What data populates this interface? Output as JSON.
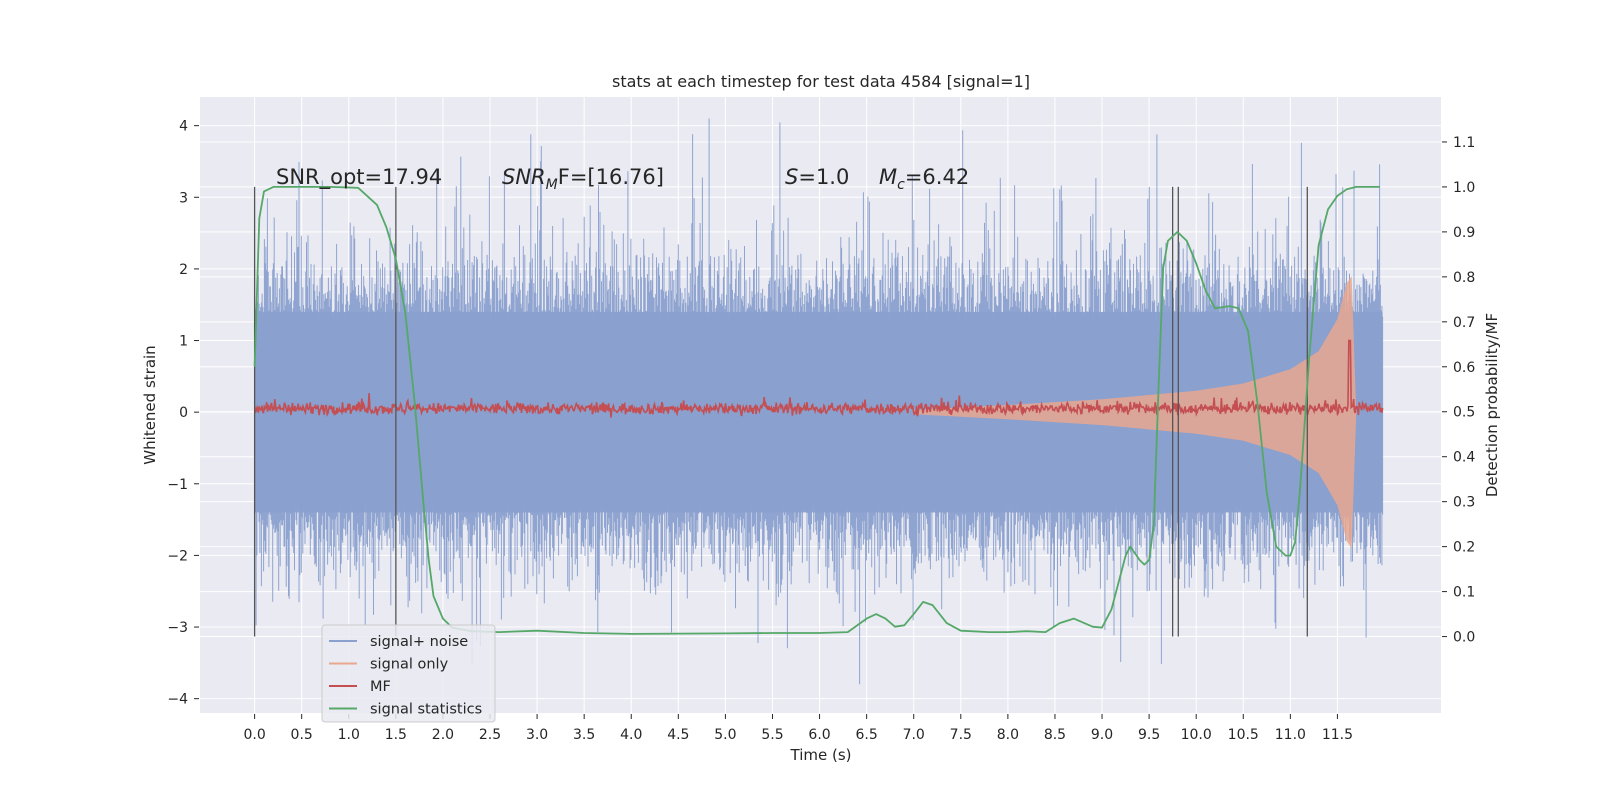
{
  "chart_data": {
    "type": "line",
    "title": "stats at each timestep for test data 4584 [signal=1]",
    "xlabel": "Time (s)",
    "ylabel": "Whitened strain",
    "y2label": "Detection probability/MF",
    "xlim": [
      -0.58,
      12.6
    ],
    "ylim": [
      -4.2,
      4.4
    ],
    "y2lim": [
      -0.17,
      1.2
    ],
    "x_ticks": [
      "0.0",
      "0.5",
      "1.0",
      "1.5",
      "2.0",
      "2.5",
      "3.0",
      "3.5",
      "4.0",
      "4.5",
      "5.0",
      "5.5",
      "6.0",
      "6.5",
      "7.0",
      "7.5",
      "8.0",
      "8.5",
      "9.0",
      "9.5",
      "10.0",
      "10.5",
      "11.0",
      "11.5"
    ],
    "y_ticks": [
      "4",
      "3",
      "2",
      "1",
      "0",
      "−1",
      "−2",
      "−3",
      "−4"
    ],
    "y2_ticks": [
      "1.1",
      "1.0",
      "0.9",
      "0.8",
      "0.7",
      "0.6",
      "0.5",
      "0.4",
      "0.3",
      "0.2",
      "0.1",
      "0.0"
    ],
    "grid": true,
    "legend_position": "lower-left",
    "annotations": {
      "snr_opt": "SNR_opt=17.94",
      "snr_mf_main": "SNR",
      "snr_mf_sub": "M",
      "snr_mf_tail": "F=[16.76]",
      "s_main": "S",
      "s_tail": "=1.0",
      "mc_main": "M",
      "mc_sub": "c",
      "mc_tail": "=6.42"
    },
    "vertical_markers": [
      0.0,
      1.5,
      9.75,
      9.81,
      11.18
    ],
    "series": [
      {
        "name": "signal+ noise",
        "color": "#8aa0ce",
        "axis": "left",
        "kind": "noise-band",
        "x_range": [
          0.0,
          11.98
        ],
        "core_amplitude": 1.4,
        "peak_range": [
          -3.8,
          4.1
        ]
      },
      {
        "name": "signal only",
        "color": "#e8a78f",
        "axis": "left",
        "kind": "chirp-envelope",
        "x": [
          7.0,
          8.0,
          9.0,
          10.0,
          10.5,
          11.0,
          11.3,
          11.5,
          11.6,
          11.65,
          11.7
        ],
        "envelope": [
          0.03,
          0.1,
          0.18,
          0.3,
          0.4,
          0.6,
          0.85,
          1.3,
          1.8,
          1.9,
          0.0
        ]
      },
      {
        "name": "MF",
        "color": "#c44e52",
        "axis": "left",
        "kind": "noisy-line",
        "x_range": [
          0.0,
          11.98
        ],
        "level": 0.05,
        "spike": {
          "x": 11.63,
          "y": 1.0
        }
      },
      {
        "name": "signal statistics",
        "color": "#55a868",
        "axis": "right",
        "kind": "line",
        "x": [
          0.0,
          0.05,
          0.1,
          0.2,
          0.4,
          0.8,
          1.1,
          1.3,
          1.4,
          1.5,
          1.6,
          1.7,
          1.75,
          1.8,
          1.85,
          1.9,
          2.0,
          2.1,
          2.3,
          2.6,
          3.0,
          3.5,
          4.0,
          5.0,
          5.5,
          6.0,
          6.3,
          6.5,
          6.6,
          6.7,
          6.8,
          6.9,
          7.0,
          7.1,
          7.2,
          7.35,
          7.5,
          7.8,
          8.0,
          8.2,
          8.4,
          8.55,
          8.7,
          8.9,
          9.0,
          9.1,
          9.2,
          9.25,
          9.3,
          9.4,
          9.45,
          9.5,
          9.55,
          9.6,
          9.65,
          9.7,
          9.8,
          9.9,
          10.0,
          10.1,
          10.2,
          10.35,
          10.45,
          10.55,
          10.65,
          10.75,
          10.85,
          10.95,
          11.0,
          11.05,
          11.1,
          11.2,
          11.3,
          11.4,
          11.5,
          11.6,
          11.7,
          11.8,
          11.95
        ],
        "y": [
          0.6,
          0.93,
          0.99,
          1.0,
          1.0,
          1.0,
          0.998,
          0.96,
          0.91,
          0.84,
          0.72,
          0.52,
          0.4,
          0.28,
          0.17,
          0.09,
          0.04,
          0.02,
          0.012,
          0.01,
          0.013,
          0.008,
          0.006,
          0.007,
          0.008,
          0.008,
          0.01,
          0.04,
          0.05,
          0.04,
          0.022,
          0.025,
          0.05,
          0.077,
          0.07,
          0.03,
          0.013,
          0.01,
          0.01,
          0.012,
          0.01,
          0.03,
          0.04,
          0.022,
          0.02,
          0.06,
          0.14,
          0.18,
          0.2,
          0.17,
          0.16,
          0.17,
          0.25,
          0.55,
          0.82,
          0.88,
          0.9,
          0.88,
          0.83,
          0.77,
          0.73,
          0.735,
          0.73,
          0.68,
          0.52,
          0.32,
          0.2,
          0.18,
          0.18,
          0.21,
          0.32,
          0.62,
          0.87,
          0.95,
          0.98,
          0.995,
          1.0,
          1.0,
          1.0
        ]
      }
    ]
  }
}
